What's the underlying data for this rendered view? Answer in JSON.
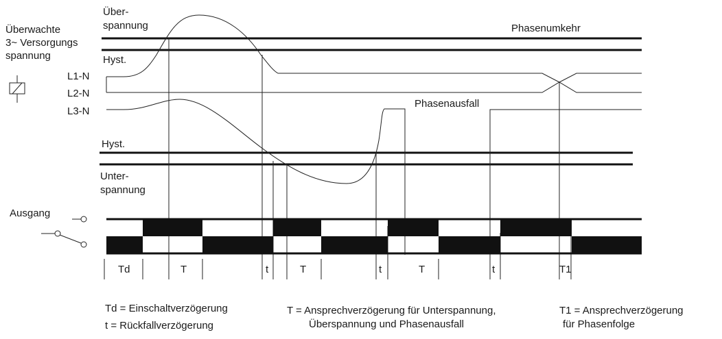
{
  "labels": {
    "monitored_voltage": [
      "Überwachte",
      "3~ Versorgungs",
      "spannung"
    ],
    "overvoltage": [
      "Über-",
      "spannung"
    ],
    "undervoltage": [
      "Unter-",
      "spannung"
    ],
    "hyst_top": "Hyst.",
    "hyst_bottom": "Hyst.",
    "l1": "L1-N",
    "l2": "L2-N",
    "l3": "L3-N",
    "phase_reversal": "Phasenumkehr",
    "phase_failure": "Phasenausfall",
    "output": "Ausgang"
  },
  "timeline": {
    "segments": [
      "Td",
      "T",
      "t",
      "T",
      "t",
      "T",
      "t",
      "T1"
    ]
  },
  "legend": {
    "td": "Td = Einschaltverzögerung",
    "t": "t = Rückfallverzögerung",
    "T": [
      "T = Ansprechverzögerung für Unterspannung,",
      "Überspannung und Phasenausfall"
    ],
    "T1": [
      "T1 = Ansprechverzögerung",
      "für Phasenfolge"
    ]
  }
}
